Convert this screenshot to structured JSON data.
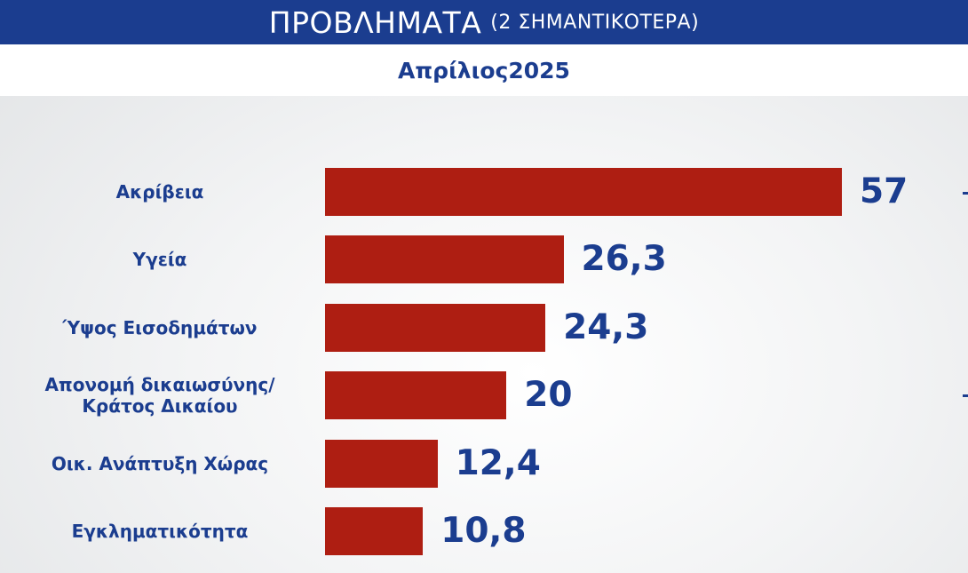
{
  "header": {
    "title": "ΠΡΟΒΛΗΜΑΤΑ",
    "subtitle": "(2 ΣΗΜΑΝΤΙΚΟΤΕΡΑ)"
  },
  "period": "Απρίλιος2025",
  "colors": {
    "header_bg": "#1b3d8f",
    "bar": "#ae1e12",
    "text": "#1b3d8f"
  },
  "chart_data": {
    "type": "bar",
    "orientation": "horizontal",
    "title": "ΠΡΟΒΛΗΜΑΤΑ",
    "subtitle": "(2 ΣΗΜΑΝΤΙΚΟΤΕΡΑ)",
    "categories": [
      [
        "Ακρίβεια"
      ],
      [
        "Υγεία"
      ],
      [
        "Ύψος Εισοδημάτων"
      ],
      [
        "Απονομή δικαιωσύνης/",
        "Κράτος Δικαίου"
      ],
      [
        "Οικ. Ανάπτυξη Χώρας"
      ],
      [
        "Εγκληματικότητα"
      ]
    ],
    "values": [
      57,
      26.3,
      24.3,
      20,
      12.4,
      10.8
    ],
    "value_labels": [
      "57",
      "26,3",
      "24,3",
      "20",
      "12,4",
      "10,8"
    ],
    "grid": false
  }
}
